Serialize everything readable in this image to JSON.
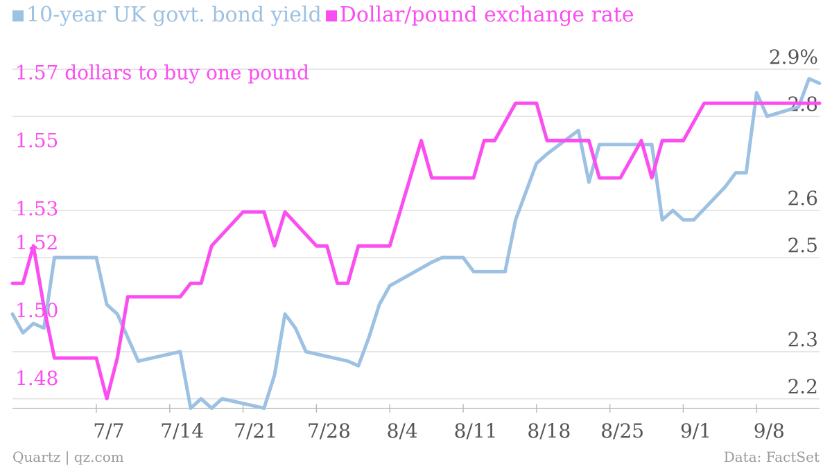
{
  "chart_data": {
    "type": "line",
    "series": [
      {
        "name": "10-year UK govt. bond yield",
        "axis": "right",
        "color": "#9dc1e3",
        "points": [
          [
            0,
            2.38
          ],
          [
            1,
            2.34
          ],
          [
            2,
            2.36
          ],
          [
            3,
            2.35
          ],
          [
            4,
            2.5
          ],
          [
            8,
            2.5
          ],
          [
            9,
            2.4
          ],
          [
            10,
            2.38
          ],
          [
            11,
            2.33
          ],
          [
            12,
            2.28
          ],
          [
            16,
            2.3
          ],
          [
            17,
            2.18
          ],
          [
            18,
            2.2
          ],
          [
            19,
            2.18
          ],
          [
            20,
            2.2
          ],
          [
            24,
            2.18
          ],
          [
            25,
            2.25
          ],
          [
            26,
            2.38
          ],
          [
            27,
            2.35
          ],
          [
            28,
            2.3
          ],
          [
            32,
            2.28
          ],
          [
            33,
            2.27
          ],
          [
            34,
            2.33
          ],
          [
            35,
            2.4
          ],
          [
            36,
            2.44
          ],
          [
            40,
            2.49
          ],
          [
            41,
            2.5
          ],
          [
            43,
            2.5
          ],
          [
            44,
            2.47
          ],
          [
            47,
            2.47
          ],
          [
            48,
            2.58
          ],
          [
            50,
            2.7
          ],
          [
            51,
            2.72
          ],
          [
            54,
            2.77
          ],
          [
            55,
            2.66
          ],
          [
            56,
            2.74
          ],
          [
            61,
            2.74
          ],
          [
            62,
            2.58
          ],
          [
            63,
            2.6
          ],
          [
            64,
            2.58
          ],
          [
            65,
            2.58
          ],
          [
            68,
            2.65
          ],
          [
            69,
            2.68
          ],
          [
            70,
            2.68
          ],
          [
            71,
            2.85
          ],
          [
            72,
            2.8
          ],
          [
            75,
            2.82
          ],
          [
            76,
            2.88
          ],
          [
            77,
            2.87
          ]
        ]
      },
      {
        "name": "Dollar/pound exchange rate",
        "axis": "left",
        "color": "#fb4ef0",
        "points": [
          [
            0,
            1.512
          ],
          [
            1,
            1.512
          ],
          [
            2,
            1.523
          ],
          [
            3,
            1.505
          ],
          [
            4,
            1.49
          ],
          [
            8,
            1.49
          ],
          [
            9,
            1.478
          ],
          [
            10,
            1.49
          ],
          [
            11,
            1.508
          ],
          [
            16,
            1.508
          ],
          [
            17,
            1.512
          ],
          [
            18,
            1.512
          ],
          [
            19,
            1.523
          ],
          [
            22,
            1.533
          ],
          [
            24,
            1.533
          ],
          [
            25,
            1.523
          ],
          [
            26,
            1.533
          ],
          [
            29,
            1.523
          ],
          [
            30,
            1.523
          ],
          [
            31,
            1.512
          ],
          [
            32,
            1.512
          ],
          [
            33,
            1.523
          ],
          [
            36,
            1.523
          ],
          [
            39,
            1.554
          ],
          [
            40,
            1.543
          ],
          [
            44,
            1.543
          ],
          [
            45,
            1.554
          ],
          [
            46,
            1.554
          ],
          [
            48,
            1.565
          ],
          [
            50,
            1.565
          ],
          [
            51,
            1.554
          ],
          [
            55,
            1.554
          ],
          [
            56,
            1.543
          ],
          [
            58,
            1.543
          ],
          [
            60,
            1.554
          ],
          [
            61,
            1.543
          ],
          [
            62,
            1.554
          ],
          [
            64,
            1.554
          ],
          [
            66,
            1.565
          ],
          [
            67,
            1.565
          ],
          [
            68,
            1.565
          ],
          [
            69,
            1.565
          ],
          [
            70,
            1.565
          ],
          [
            71,
            1.565
          ],
          [
            72,
            1.565
          ],
          [
            73,
            1.565
          ],
          [
            74,
            1.565
          ],
          [
            75,
            1.565
          ],
          [
            77,
            1.565
          ]
        ]
      }
    ],
    "x_ticks": [
      {
        "x": 8,
        "label": "7/7"
      },
      {
        "x": 15,
        "label": "7/14"
      },
      {
        "x": 22,
        "label": "7/21"
      },
      {
        "x": 29,
        "label": "7/28"
      },
      {
        "x": 36,
        "label": "8/4"
      },
      {
        "x": 43,
        "label": "8/11"
      },
      {
        "x": 50,
        "label": "8/18"
      },
      {
        "x": 57,
        "label": "8/25"
      },
      {
        "x": 64,
        "label": "9/1"
      },
      {
        "x": 71,
        "label": "9/8"
      }
    ],
    "xlim": [
      0,
      77
    ],
    "left_axis": {
      "ylim": [
        1.478,
        1.575
      ],
      "ticks": [
        {
          "value": 1.57,
          "label": "1.57 dollars to buy one pound"
        },
        {
          "value": 1.55,
          "label": "1.55"
        },
        {
          "value": 1.53,
          "label": "1.53"
        },
        {
          "value": 1.52,
          "label": "1.52"
        },
        {
          "value": 1.5,
          "label": "1.50"
        },
        {
          "value": 1.48,
          "label": "1.48"
        }
      ],
      "color": "#fb4ef0"
    },
    "right_axis": {
      "ylim": [
        2.2,
        2.9
      ],
      "ticks": [
        {
          "value": 2.9,
          "label": "2.9%"
        },
        {
          "value": 2.8,
          "label": "2.8"
        },
        {
          "value": 2.6,
          "label": "2.6"
        },
        {
          "value": 2.5,
          "label": "2.5"
        },
        {
          "value": 2.3,
          "label": "2.3"
        },
        {
          "value": 2.2,
          "label": "2.2"
        }
      ],
      "color": "#555555"
    },
    "grid": true,
    "legend_position": "top-left"
  },
  "legend": {
    "bond_label": "10-year UK govt. bond yield",
    "bond_color": "#9dc1e3",
    "fx_label": "Dollar/pound exchange rate",
    "fx_color": "#fb4ef0"
  },
  "footer": {
    "source_left": "Quartz | qz.com",
    "source_right": "Data: FactSet"
  }
}
